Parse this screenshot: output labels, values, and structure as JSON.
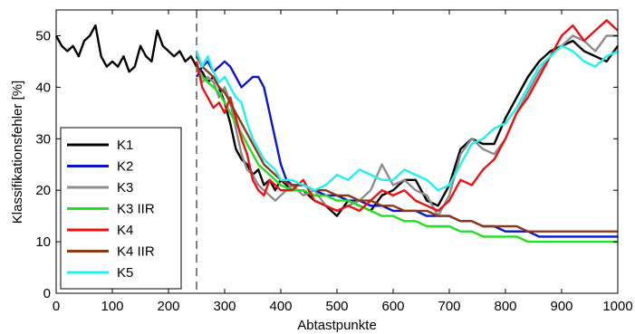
{
  "chart_data": {
    "type": "line",
    "title": "",
    "xlabel": "Abtastpunkte",
    "ylabel": "Klassifikationsfehler [%]",
    "xlim": [
      0,
      1000
    ],
    "ylim": [
      0,
      55
    ],
    "xticks": [
      0,
      100,
      200,
      300,
      400,
      500,
      600,
      700,
      800,
      900,
      1000
    ],
    "yticks": [
      0,
      10,
      20,
      30,
      40,
      50
    ],
    "grid": false,
    "legend_position": "bottom-left",
    "vline": {
      "x": 250,
      "style": "dashed",
      "color": "#808080"
    },
    "series": [
      {
        "name": "K1",
        "color": "#000000",
        "x": [
          0,
          10,
          20,
          30,
          40,
          50,
          60,
          70,
          80,
          90,
          100,
          110,
          120,
          130,
          140,
          150,
          160,
          170,
          180,
          190,
          200,
          210,
          220,
          230,
          240,
          250,
          260,
          270,
          280,
          290,
          300,
          310,
          320,
          330,
          340,
          350,
          360,
          370,
          380,
          390,
          400,
          420,
          440,
          460,
          480,
          500,
          520,
          540,
          560,
          580,
          600,
          620,
          640,
          660,
          680,
          700,
          720,
          740,
          760,
          780,
          800,
          820,
          840,
          860,
          880,
          900,
          920,
          940,
          960,
          980,
          1000
        ],
        "values": [
          50,
          48,
          47,
          48,
          46,
          49,
          50,
          52,
          46,
          44,
          45,
          44,
          46,
          43,
          44,
          48,
          46,
          45,
          51,
          48,
          47,
          46,
          47,
          45,
          46,
          44,
          43,
          41,
          42,
          40,
          37,
          33,
          28,
          26,
          25,
          23,
          24,
          21,
          22,
          20,
          22,
          20,
          20,
          18,
          17,
          15,
          18,
          17,
          16,
          19,
          20,
          22,
          22,
          18,
          17,
          21,
          28,
          30,
          29,
          29,
          34,
          38,
          42,
          45,
          47,
          48,
          49,
          47,
          46,
          45,
          48
        ]
      },
      {
        "name": "K2",
        "color": "#0a14c8",
        "x": [
          250,
          260,
          270,
          280,
          290,
          300,
          310,
          320,
          330,
          340,
          350,
          360,
          370,
          380,
          390,
          400,
          410,
          420,
          440,
          460,
          480,
          500,
          520,
          540,
          560,
          580,
          600,
          620,
          640,
          660,
          680,
          700,
          720,
          740,
          760,
          780,
          800,
          820,
          840,
          860,
          880,
          900,
          920,
          940,
          960,
          980,
          1000
        ],
        "values": [
          42,
          44,
          45,
          43,
          44,
          45,
          44,
          42,
          40,
          41,
          42,
          42,
          40,
          35,
          30,
          25,
          22,
          21,
          21,
          20,
          19,
          19,
          18,
          18,
          17,
          17,
          16,
          16,
          16,
          15,
          15,
          15,
          14,
          14,
          13,
          13,
          12,
          12,
          12,
          11,
          11,
          11,
          11,
          11,
          11,
          11,
          11
        ]
      },
      {
        "name": "K3",
        "color": "#8c8c8c",
        "x": [
          250,
          260,
          270,
          280,
          290,
          300,
          310,
          320,
          330,
          340,
          350,
          360,
          370,
          380,
          390,
          400,
          420,
          440,
          460,
          480,
          500,
          520,
          540,
          560,
          580,
          600,
          620,
          640,
          660,
          680,
          700,
          720,
          740,
          760,
          780,
          800,
          820,
          840,
          860,
          880,
          900,
          920,
          940,
          960,
          980,
          1000
        ],
        "values": [
          44,
          41,
          42,
          41,
          38,
          40,
          37,
          32,
          27,
          24,
          23,
          21,
          20,
          19,
          18,
          19,
          21,
          19,
          20,
          17,
          16,
          17,
          18,
          20,
          25,
          21,
          22,
          20,
          19,
          15,
          19,
          27,
          30,
          28,
          27,
          30,
          35,
          39,
          43,
          46,
          48,
          50,
          49,
          47,
          50,
          50
        ]
      },
      {
        "name": "K3 IIR",
        "color": "#20e020",
        "x": [
          250,
          260,
          270,
          280,
          290,
          300,
          310,
          320,
          330,
          340,
          350,
          360,
          370,
          380,
          390,
          400,
          420,
          440,
          460,
          480,
          500,
          520,
          540,
          560,
          580,
          600,
          620,
          640,
          660,
          680,
          700,
          720,
          740,
          760,
          780,
          800,
          820,
          840,
          860,
          880,
          900,
          920,
          940,
          960,
          980,
          1000
        ],
        "values": [
          44,
          42,
          41,
          40,
          39,
          37,
          35,
          33,
          31,
          29,
          27,
          25,
          24,
          23,
          22,
          21,
          20,
          20,
          19,
          19,
          18,
          18,
          17,
          16,
          15,
          15,
          14,
          14,
          13,
          13,
          13,
          12,
          12,
          11,
          11,
          11,
          11,
          10,
          10,
          10,
          10,
          10,
          10,
          10,
          10,
          10
        ]
      },
      {
        "name": "K4",
        "color": "#ee1010",
        "x": [
          250,
          260,
          270,
          280,
          290,
          300,
          310,
          320,
          330,
          340,
          350,
          360,
          370,
          380,
          390,
          400,
          420,
          440,
          460,
          480,
          500,
          520,
          540,
          560,
          580,
          600,
          620,
          640,
          660,
          680,
          700,
          720,
          740,
          760,
          780,
          800,
          820,
          840,
          860,
          880,
          900,
          920,
          940,
          960,
          980,
          1000
        ],
        "values": [
          45,
          40,
          38,
          36,
          37,
          35,
          38,
          34,
          30,
          27,
          22,
          20,
          19,
          22,
          21,
          20,
          20,
          22,
          18,
          17,
          16,
          17,
          16,
          18,
          20,
          19,
          20,
          18,
          17,
          16,
          18,
          22,
          21,
          24,
          26,
          30,
          35,
          38,
          42,
          46,
          50,
          52,
          49,
          51,
          53,
          51
        ]
      },
      {
        "name": "K4 IIR",
        "color": "#8b3a1a",
        "x": [
          250,
          260,
          270,
          280,
          290,
          300,
          310,
          320,
          330,
          340,
          350,
          360,
          370,
          380,
          390,
          400,
          420,
          440,
          460,
          480,
          500,
          520,
          540,
          560,
          580,
          600,
          620,
          640,
          660,
          680,
          700,
          720,
          740,
          760,
          780,
          800,
          820,
          840,
          860,
          880,
          900,
          920,
          940,
          960,
          980,
          1000
        ],
        "values": [
          46,
          44,
          43,
          42,
          40,
          39,
          37,
          35,
          33,
          31,
          29,
          27,
          25,
          24,
          23,
          22,
          21,
          21,
          20,
          20,
          19,
          19,
          18,
          18,
          17,
          17,
          16,
          16,
          16,
          15,
          15,
          14,
          14,
          13,
          13,
          13,
          13,
          12,
          12,
          12,
          12,
          12,
          12,
          12,
          12,
          12
        ]
      },
      {
        "name": "K5",
        "color": "#22f0f0",
        "x": [
          250,
          260,
          270,
          280,
          290,
          300,
          310,
          320,
          330,
          340,
          350,
          360,
          370,
          380,
          390,
          400,
          420,
          440,
          460,
          480,
          500,
          520,
          540,
          560,
          580,
          600,
          620,
          640,
          660,
          680,
          700,
          720,
          740,
          760,
          780,
          800,
          820,
          840,
          860,
          880,
          900,
          920,
          940,
          960,
          980,
          1000
        ],
        "values": [
          47,
          44,
          46,
          43,
          41,
          42,
          40,
          38,
          37,
          33,
          30,
          28,
          26,
          25,
          24,
          22,
          22,
          21,
          20,
          21,
          23,
          22,
          24,
          23,
          22,
          22,
          24,
          23,
          22,
          20,
          21,
          25,
          29,
          30,
          32,
          33,
          36,
          40,
          44,
          46,
          48,
          47,
          45,
          44,
          46,
          47
        ]
      }
    ]
  }
}
